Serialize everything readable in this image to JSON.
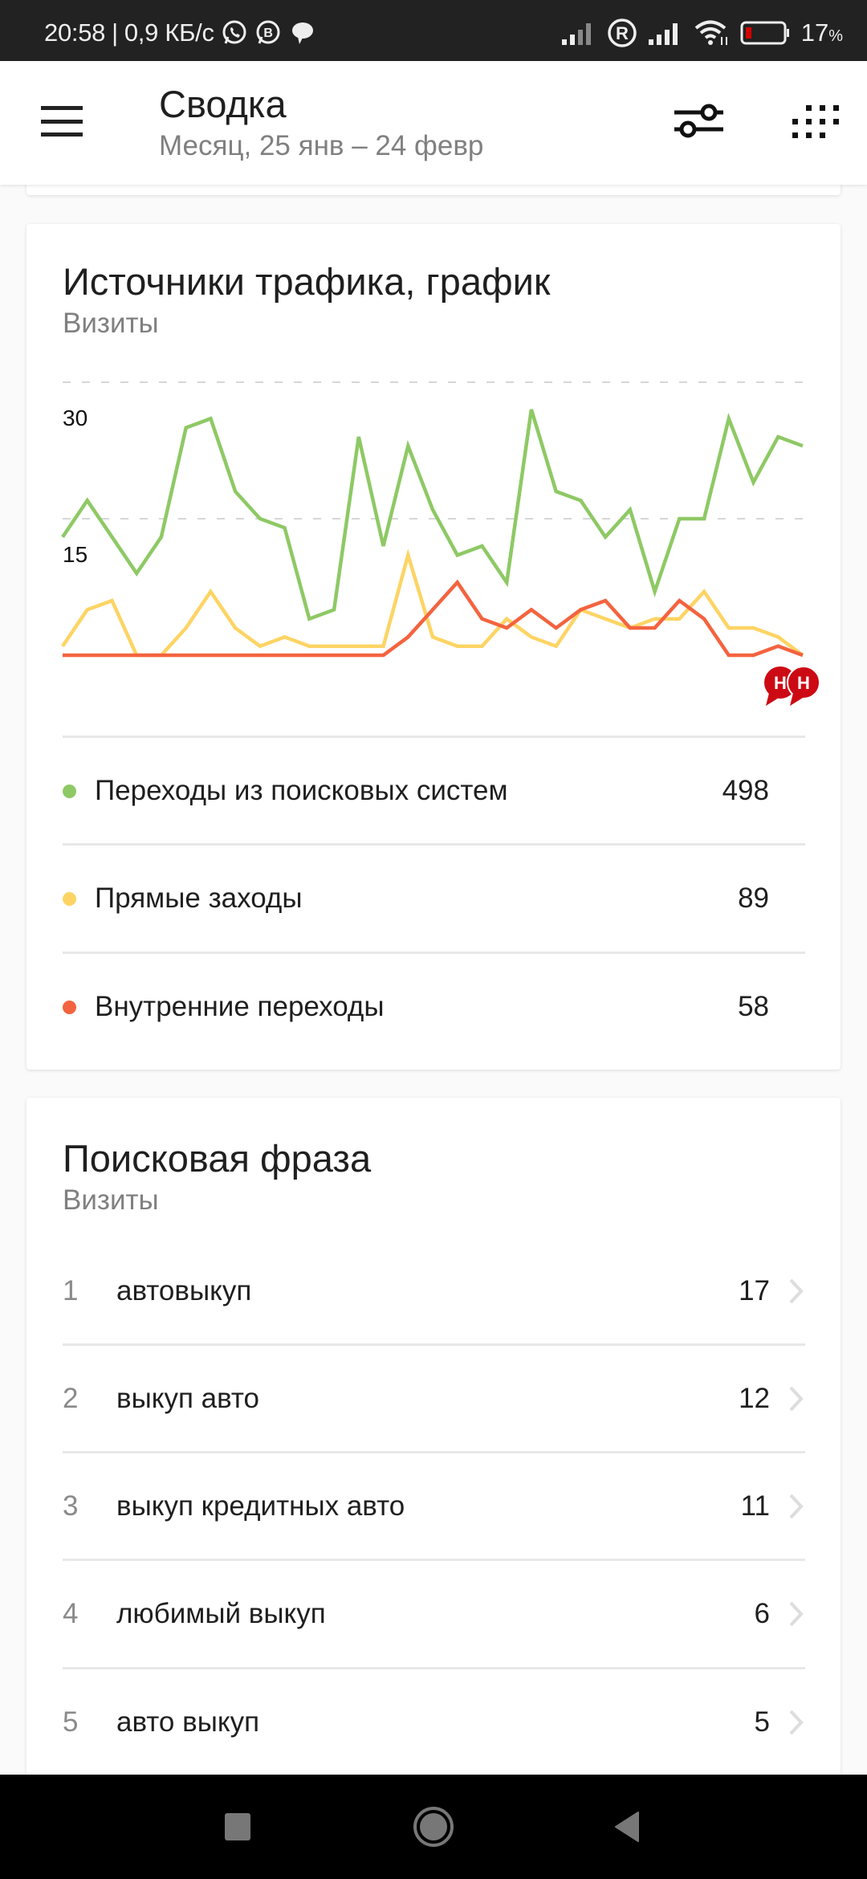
{
  "status_bar": {
    "time": "20:58",
    "separator": "|",
    "network_speed": "0,9 КБ/с",
    "notification_icons": [
      "whatsapp-icon",
      "whatsapp-business-icon",
      "chat-bubble-icon"
    ],
    "system_icons": [
      "signal-weak-icon",
      "roaming-icon",
      "signal-icon",
      "wifi-icon",
      "battery-icon"
    ],
    "battery_percent": "17",
    "battery_percent_sign": "%",
    "battery_color": "#d50000"
  },
  "header": {
    "menu_icon": "hamburger-menu-icon",
    "title": "Сводка",
    "subtitle": "Месяц, 25 янв – 24 февр",
    "filter_icon": "sliders-filter-icon",
    "apps_icon": "dots-grid-icon"
  },
  "traffic_card": {
    "title": "Источники трафика, график",
    "subtitle": "Визиты",
    "y_ticks": [
      {
        "label": "30",
        "value": 30
      },
      {
        "label": "15",
        "value": 15
      }
    ],
    "badge_icon": "hh-badge-icon",
    "legend": [
      {
        "label": "Переходы из поисковых систем",
        "value": "498",
        "color": "#8ec965"
      },
      {
        "label": "Прямые заходы",
        "value": "89",
        "color": "#fdd464"
      },
      {
        "label": "Внутренние переходы",
        "value": "58",
        "color": "#f4633f"
      }
    ]
  },
  "chart_data": {
    "type": "line",
    "title": "Источники трафика, график",
    "subtitle": "Визиты",
    "xlabel": "",
    "ylabel": "Визиты",
    "x_range": "25 янв – 24 февр",
    "x": [
      1,
      2,
      3,
      4,
      5,
      6,
      7,
      8,
      9,
      10,
      11,
      12,
      13,
      14,
      15,
      16,
      17,
      18,
      19,
      20,
      21,
      22,
      23,
      24,
      25,
      26,
      27,
      28,
      29,
      30,
      31
    ],
    "y_ticks": [
      15,
      30
    ],
    "ylim": [
      0,
      35
    ],
    "grid": true,
    "grid_style": "dashed",
    "legend_position": "bottom",
    "series": [
      {
        "name": "Переходы из поисковых систем",
        "color": "#8ec965",
        "total": 498,
        "values": [
          13,
          17,
          13,
          9,
          13,
          25,
          26,
          18,
          15,
          14,
          4,
          5,
          24,
          12,
          23,
          16,
          11,
          12,
          8,
          27,
          18,
          17,
          13,
          16,
          7,
          15,
          15,
          26,
          19,
          24,
          23
        ]
      },
      {
        "name": "Прямые заходы",
        "color": "#fdd464",
        "total": 89,
        "values": [
          1,
          5,
          6,
          0,
          0,
          3,
          7,
          3,
          1,
          2,
          1,
          1,
          1,
          1,
          11,
          2,
          1,
          1,
          4,
          2,
          1,
          5,
          4,
          3,
          4,
          4,
          7,
          3,
          3,
          2,
          0
        ]
      },
      {
        "name": "Внутренние переходы",
        "color": "#f4633f",
        "total": 58,
        "values": [
          0,
          0,
          0,
          0,
          0,
          0,
          0,
          0,
          0,
          0,
          0,
          0,
          0,
          0,
          2,
          5,
          8,
          4,
          3,
          5,
          3,
          5,
          6,
          3,
          3,
          6,
          4,
          0,
          0,
          1,
          0
        ]
      }
    ]
  },
  "phrases_card": {
    "title": "Поисковая фраза",
    "subtitle": "Визиты",
    "rows": [
      {
        "rank": "1",
        "phrase": "автовыкуп",
        "value": "17"
      },
      {
        "rank": "2",
        "phrase": "выкуп авто",
        "value": "12"
      },
      {
        "rank": "3",
        "phrase": "выкуп кредитных авто",
        "value": "11"
      },
      {
        "rank": "4",
        "phrase": "любимый выкуп",
        "value": "6"
      },
      {
        "rank": "5",
        "phrase": "авто выкуп",
        "value": "5"
      }
    ]
  },
  "nav_bar": {
    "buttons": [
      "recents-square-icon",
      "home-circle-icon",
      "back-triangle-icon"
    ]
  }
}
